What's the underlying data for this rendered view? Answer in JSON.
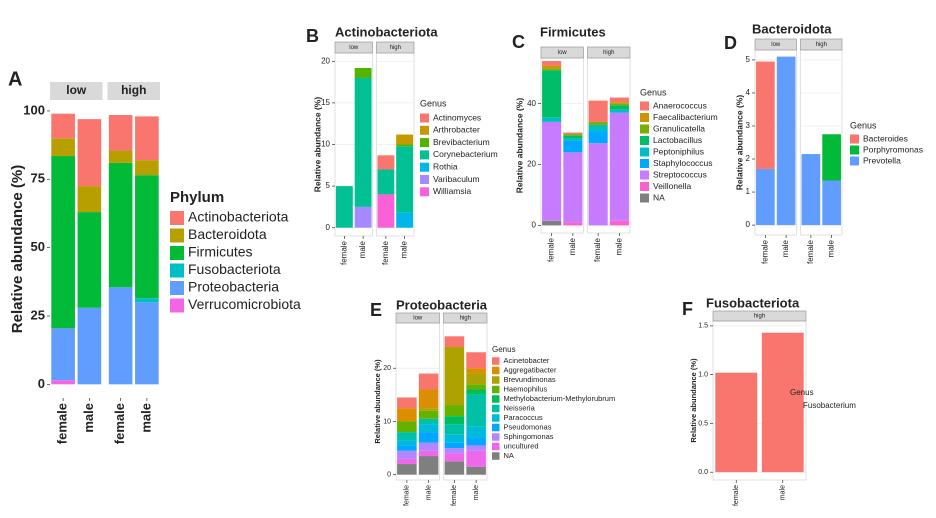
{
  "chart_data": [
    {
      "type": "bar",
      "panel": "A",
      "ylabel": "Relative abundance (%)",
      "legend_title": "Phylum",
      "grid": false,
      "facets": [
        "low",
        "high"
      ],
      "categories": [
        "female",
        "male",
        "female",
        "male"
      ],
      "ylim": [
        -5,
        104
      ],
      "yticks": [
        0,
        25,
        50,
        75,
        100
      ],
      "series": [
        {
          "name": "Actinobacteriota",
          "color": "#F8766D",
          "values": [
            9,
            24.5,
            13,
            16
          ]
        },
        {
          "name": "Bacteroidota",
          "color": "#B79F00",
          "values": [
            6.5,
            9.5,
            4.5,
            5.5
          ]
        },
        {
          "name": "Firmicutes",
          "color": "#00BA38",
          "values": [
            63,
            35,
            45.5,
            45
          ]
        },
        {
          "name": "Fusobacteriota",
          "color": "#00BFC4",
          "values": [
            0,
            0,
            0,
            1.5
          ]
        },
        {
          "name": "Proteobacteria",
          "color": "#619CFF",
          "values": [
            19,
            28,
            35.5,
            30
          ]
        },
        {
          "name": "Verrucomicrobiota",
          "color": "#F564E3",
          "values": [
            1.5,
            0,
            0,
            0
          ]
        }
      ]
    },
    {
      "type": "bar",
      "panel": "B",
      "title": "Actinobacteriota",
      "ylabel": "Relative abundance (%)",
      "legend_title": "Genus",
      "grid": true,
      "facets": [
        "low",
        "high"
      ],
      "categories": [
        "female",
        "male",
        "female",
        "male"
      ],
      "ylim": [
        -1,
        21
      ],
      "yticks": [
        0,
        5,
        10,
        15,
        20
      ],
      "series": [
        {
          "name": "Actinomyces",
          "color": "#F8766D",
          "values": [
            0,
            0,
            1.7,
            0
          ]
        },
        {
          "name": "Arthrobacter",
          "color": "#C49A00",
          "values": [
            0,
            0,
            0,
            1.2
          ]
        },
        {
          "name": "Brevibacterium",
          "color": "#53B400",
          "values": [
            0,
            1.2,
            0,
            0.2
          ]
        },
        {
          "name": "Corynebacterium",
          "color": "#00C094",
          "values": [
            5,
            15.5,
            3,
            8
          ]
        },
        {
          "name": "Rothia",
          "color": "#00B6EB",
          "values": [
            0,
            0,
            0,
            1.8
          ]
        },
        {
          "name": "Varibaculum",
          "color": "#A58AFF",
          "values": [
            0,
            2.5,
            0,
            0
          ]
        },
        {
          "name": "Williamsia",
          "color": "#FB61D7",
          "values": [
            0,
            0,
            4,
            0
          ]
        }
      ]
    },
    {
      "type": "bar",
      "panel": "C",
      "title": "Firmicutes",
      "ylabel": "Relative abundance (%)",
      "legend_title": "Genus",
      "grid": true,
      "facets": [
        "low",
        "high"
      ],
      "categories": [
        "female",
        "male",
        "female",
        "male"
      ],
      "ylim": [
        -2.5,
        55
      ],
      "yticks": [
        0,
        20,
        40
      ],
      "series": [
        {
          "name": "Anaerococcus",
          "color": "#F8766D",
          "values": [
            1.5,
            0.5,
            7,
            1.5
          ]
        },
        {
          "name": "Faecalibacterium",
          "color": "#CD9600",
          "values": [
            1,
            0,
            0,
            0.5
          ]
        },
        {
          "name": "Granulicatella",
          "color": "#7CAE00",
          "values": [
            0.5,
            0.5,
            1,
            0.5
          ]
        },
        {
          "name": "Lactobacillus",
          "color": "#00BE67",
          "values": [
            15.5,
            1,
            0,
            1.5
          ]
        },
        {
          "name": "Peptoniphilus",
          "color": "#00BFC4",
          "values": [
            1.5,
            0.5,
            2,
            1
          ]
        },
        {
          "name": "Staphylococcus",
          "color": "#00A9FF",
          "values": [
            0,
            4,
            4,
            0
          ]
        },
        {
          "name": "Streptococcus",
          "color": "#C77CFF",
          "values": [
            32.5,
            23,
            27,
            35.5
          ]
        },
        {
          "name": "Veillonella",
          "color": "#FF61CC",
          "values": [
            0,
            1,
            0,
            1.5
          ]
        },
        {
          "name": "NA",
          "color": "#7F7F7F",
          "values": [
            1.5,
            0,
            0,
            0
          ]
        }
      ]
    },
    {
      "type": "bar",
      "panel": "D",
      "title": "Bacteroidota",
      "ylabel": "Relative abundance (%)",
      "legend_title": "Genus",
      "grid": true,
      "facets": [
        "low",
        "high"
      ],
      "categories": [
        "female",
        "male",
        "female",
        "male"
      ],
      "ylim": [
        -0.3,
        5.3
      ],
      "yticks": [
        0,
        1,
        2,
        3,
        4,
        5
      ],
      "series": [
        {
          "name": "Bacteroides",
          "color": "#F8766D",
          "values": [
            3.25,
            0,
            0,
            0
          ]
        },
        {
          "name": "Porphyromonas",
          "color": "#00BA38",
          "values": [
            0,
            0,
            0,
            1.4
          ]
        },
        {
          "name": "Prevotella",
          "color": "#619CFF",
          "values": [
            1.7,
            5.1,
            2.15,
            1.35
          ]
        }
      ]
    },
    {
      "type": "bar",
      "panel": "E",
      "title": "Proteobacteria",
      "ylabel": "Relative abundance (%)",
      "legend_title": "Genus",
      "grid": true,
      "facets": [
        "low",
        "high"
      ],
      "categories": [
        "female",
        "male",
        "female",
        "male"
      ],
      "ylim": [
        -1,
        28.5
      ],
      "yticks": [
        0,
        10,
        20
      ],
      "series": [
        {
          "name": "Acinetobacter",
          "color": "#F8766D",
          "values": [
            2,
            3,
            2,
            3
          ]
        },
        {
          "name": "Aggregatibacter",
          "color": "#DB8E00",
          "values": [
            2.5,
            3.5,
            0,
            1
          ]
        },
        {
          "name": "Brevundimonas",
          "color": "#AEA200",
          "values": [
            0,
            0.5,
            11,
            2
          ]
        },
        {
          "name": "Haemophilus",
          "color": "#64B200",
          "values": [
            2,
            1.5,
            2,
            1
          ]
        },
        {
          "name": "Methylobacterium-Methylorubrum",
          "color": "#00BD5C",
          "values": [
            0,
            0,
            1.5,
            1
          ]
        },
        {
          "name": "Neisseria",
          "color": "#00C1A7",
          "values": [
            1.5,
            1,
            2,
            6
          ]
        },
        {
          "name": "Paracoccus",
          "color": "#00BADE",
          "values": [
            1,
            1.5,
            1.5,
            2
          ]
        },
        {
          "name": "Pseudomonas",
          "color": "#00A6FF",
          "values": [
            1,
            2,
            1,
            1.5
          ]
        },
        {
          "name": "Sphingomonas",
          "color": "#B385FF",
          "values": [
            1.5,
            1.5,
            1,
            1
          ]
        },
        {
          "name": "uncultured",
          "color": "#EF67EB",
          "values": [
            1,
            1,
            1.5,
            3
          ]
        },
        {
          "name": "NA",
          "color": "#7F7F7F",
          "values": [
            2,
            3.5,
            2.5,
            1.5
          ]
        }
      ]
    },
    {
      "type": "bar",
      "panel": "F",
      "title": "Fusobacteriota",
      "ylabel": "Relative abundance (%)",
      "legend_title": "Genus",
      "grid": true,
      "facets": [
        "high"
      ],
      "categories": [
        "female",
        "male"
      ],
      "ylim": [
        -0.08,
        1.55
      ],
      "yticks": [
        {
          "value": 0,
          "label": "0.0"
        },
        0.5,
        {
          "value": 1,
          "label": "1.0"
        },
        1.5
      ],
      "series": [
        {
          "name": "Fusobacterium",
          "color": "#F8766D",
          "values": [
            1.02,
            1.43
          ]
        }
      ]
    }
  ]
}
